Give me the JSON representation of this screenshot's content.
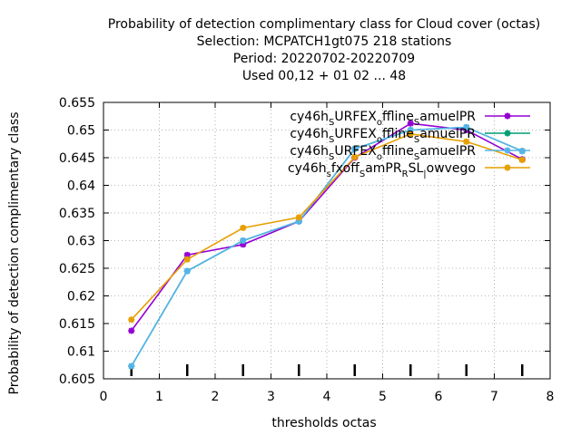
{
  "chart_data": {
    "type": "line",
    "title_lines": [
      "Probability of detection complimentary class  for Cloud cover (octas)",
      "Selection: MCPATCH1gt075    218 stations",
      "Period: 20220702-20220709",
      "Used  00,12  + 01 02 ... 48"
    ],
    "xlabel": "thresholds octas",
    "ylabel": "Probability of detection complimentary class",
    "xlim": [
      0,
      8
    ],
    "ylim": [
      0.605,
      0.655
    ],
    "xticks": [
      0,
      1,
      2,
      3,
      4,
      5,
      6,
      7,
      8
    ],
    "xtick_labels": [
      "0",
      "1",
      "2",
      "3",
      "4",
      "5",
      "6",
      "7",
      "8"
    ],
    "yticks": [
      0.605,
      0.61,
      0.615,
      0.62,
      0.625,
      0.63,
      0.635,
      0.64,
      0.645,
      0.65,
      0.655
    ],
    "ytick_labels": [
      "0.605",
      "0.61",
      "0.615",
      "0.62",
      "0.625",
      "0.63",
      "0.635",
      "0.64",
      "0.645",
      "0.65",
      "0.655"
    ],
    "grid": true,
    "legend_position": "top-right",
    "x": [
      0.5,
      1.5,
      2.5,
      3.5,
      4.5,
      5.5,
      6.5,
      7.5
    ],
    "series": [
      {
        "legend_parts": [
          [
            "cy46h",
            ""
          ],
          [
            "URFEX",
            "S"
          ],
          [
            "ffline",
            "o"
          ],
          [
            "amuelPR",
            "S"
          ]
        ],
        "color": "#9400d3",
        "values": [
          0.6137,
          0.6274,
          0.6293,
          0.6335,
          0.645,
          0.6512,
          0.65,
          0.6447
        ]
      },
      {
        "legend_parts": [
          [
            "cy46h",
            ""
          ],
          [
            "URFEX",
            "S"
          ],
          [
            "ffline",
            "o"
          ],
          [
            "amuelPR",
            "S"
          ]
        ],
        "color": "#009e73",
        "values": [
          0.6073,
          0.6245,
          0.63,
          0.6335,
          0.6466,
          0.65,
          0.6505,
          0.6462
        ]
      },
      {
        "legend_parts": [
          [
            "cy46h",
            ""
          ],
          [
            "URFEX",
            "S"
          ],
          [
            "ffline",
            "o"
          ],
          [
            "amuelPR",
            "S"
          ]
        ],
        "color": "#56b4e9",
        "values": [
          0.6073,
          0.6245,
          0.63,
          0.6335,
          0.6466,
          0.65,
          0.6505,
          0.6462
        ]
      },
      {
        "legend_parts": [
          [
            "cy46h",
            ""
          ],
          [
            "fxoff",
            "s"
          ],
          [
            "amPR",
            "S"
          ],
          [
            "SL",
            "R"
          ],
          [
            "owvego",
            "|"
          ]
        ],
        "color": "#e69f00",
        "values": [
          0.6157,
          0.6266,
          0.6323,
          0.6342,
          0.6451,
          0.6493,
          0.6479,
          0.6446
        ]
      }
    ],
    "bottom_marker_x": [
      0.5,
      1.5,
      2.5,
      3.5,
      4.5,
      5.5,
      6.5,
      7.5
    ]
  }
}
